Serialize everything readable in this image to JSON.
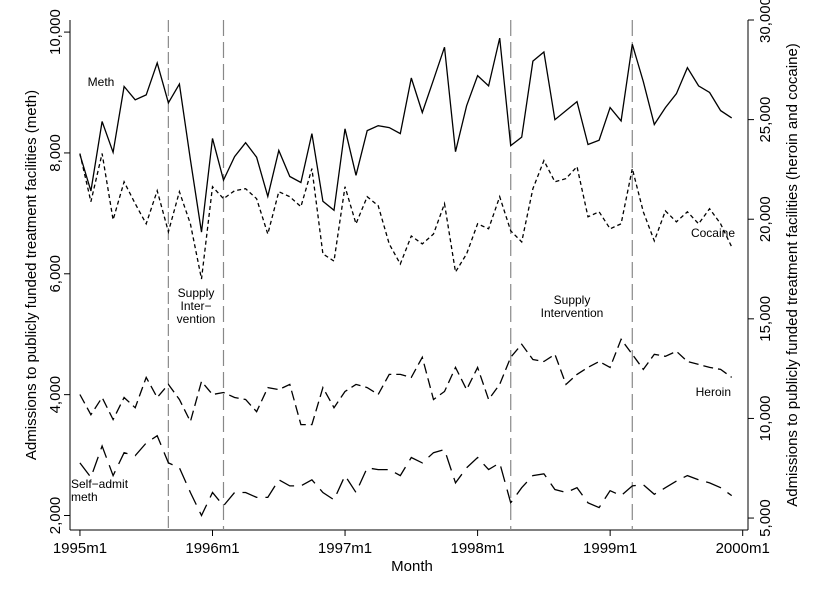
{
  "chart_data": {
    "type": "line",
    "xlabel": "Month",
    "ylabel": "Admissions to publicly funded treatment facilities (meth)",
    "y2label": "Admissions to publicly funded treatment facilities (heroin and cocaine)",
    "x": [
      1995,
      1995.083,
      1995.167,
      1995.25,
      1995.333,
      1995.417,
      1995.5,
      1995.583,
      1995.667,
      1995.75,
      1995.833,
      1995.917,
      1996,
      1996.083,
      1996.167,
      1996.25,
      1996.333,
      1996.417,
      1996.5,
      1996.583,
      1996.667,
      1996.75,
      1996.833,
      1996.917,
      1997,
      1997.083,
      1997.167,
      1997.25,
      1997.333,
      1997.417,
      1997.5,
      1997.583,
      1997.667,
      1997.75,
      1997.833,
      1997.917,
      1998,
      1998.083,
      1998.167,
      1998.25,
      1998.333,
      1998.417,
      1998.5,
      1998.583,
      1998.667,
      1998.75,
      1998.833,
      1998.917,
      1999,
      1999.083,
      1999.167,
      1999.25,
      1999.333,
      1999.417,
      1999.5,
      1999.583,
      1999.667,
      1999.75,
      1999.833,
      1999.917
    ],
    "xlim": [
      1994.925,
      2000.04
    ],
    "xticks": [
      {
        "value": 1995,
        "label": "1995m1"
      },
      {
        "value": 1996,
        "label": "1996m1"
      },
      {
        "value": 1997,
        "label": "1997m1"
      },
      {
        "value": 1998,
        "label": "1998m1"
      },
      {
        "value": 1999,
        "label": "1999m1"
      },
      {
        "value": 2000,
        "label": "2000m1"
      }
    ],
    "ylim": [
      1760,
      10200
    ],
    "yticks": [
      {
        "value": 2000,
        "label": "2,000"
      },
      {
        "value": 4000,
        "label": "4,000"
      },
      {
        "value": 6000,
        "label": "6,000"
      },
      {
        "value": 8000,
        "label": "8,000"
      },
      {
        "value": 10000,
        "label": "10,000"
      }
    ],
    "y2lim": [
      4400,
      30000
    ],
    "y2ticks": [
      {
        "value": 5000,
        "label": "5,000"
      },
      {
        "value": 10000,
        "label": "10,000"
      },
      {
        "value": 15000,
        "label": "15,000"
      },
      {
        "value": 20000,
        "label": "20,000"
      },
      {
        "value": 25000,
        "label": "25,000"
      },
      {
        "value": 30000,
        "label": "30,000"
      }
    ],
    "series": [
      {
        "name": "Meth",
        "color": "#000000",
        "line_style": "solid",
        "values": [
          7975,
          7370,
          8520,
          8010,
          9100,
          8880,
          8960,
          9490,
          8830,
          9140,
          7890,
          6690,
          8240,
          7550,
          7940,
          8170,
          7930,
          7280,
          8040,
          7610,
          7510,
          8320,
          7200,
          7050,
          8400,
          7630,
          8370,
          8450,
          8420,
          8320,
          9240,
          8670,
          9210,
          9750,
          8020,
          8780,
          9280,
          9110,
          9900,
          8120,
          8260,
          9520,
          9670,
          8550,
          8700,
          8850,
          8140,
          8210,
          8750,
          8530,
          9800,
          9180,
          8470,
          8750,
          8980,
          9410,
          9110,
          9000,
          8700,
          8580
        ]
      },
      {
        "name": "Cocaine",
        "color": "#000000",
        "line_style": "short-dash",
        "axis": "y2",
        "values": [
          23300,
          20880,
          23300,
          19970,
          21880,
          20780,
          19770,
          21430,
          19370,
          21380,
          19770,
          17000,
          21630,
          21030,
          21430,
          21530,
          21030,
          19260,
          21380,
          21130,
          20630,
          22540,
          18260,
          17900,
          21630,
          19770,
          21130,
          20680,
          18760,
          17750,
          19160,
          18760,
          19260,
          20780,
          17350,
          18260,
          19770,
          19520,
          21130,
          19420,
          18860,
          21530,
          22940,
          21880,
          22040,
          22640,
          20120,
          20370,
          19520,
          19770,
          22540,
          20370,
          18910,
          20420,
          19870,
          20370,
          19770,
          20530,
          19770,
          18610
        ]
      },
      {
        "name": "Heroin",
        "color": "#000000",
        "line_style": "dash",
        "axis": "y2",
        "values": [
          11200,
          10190,
          11050,
          9940,
          11050,
          10540,
          12060,
          11050,
          11710,
          10950,
          9840,
          11860,
          11200,
          11300,
          11050,
          10950,
          10340,
          11550,
          11450,
          11710,
          9690,
          9690,
          11550,
          10540,
          11350,
          11710,
          11550,
          11200,
          12210,
          12210,
          12060,
          13070,
          10950,
          11350,
          12560,
          11450,
          12560,
          10950,
          11710,
          13070,
          13720,
          12960,
          12860,
          13220,
          11710,
          12210,
          12560,
          12860,
          12560,
          13970,
          13220,
          12460,
          13220,
          13120,
          13370,
          12860,
          12710,
          12560,
          12460,
          12060
        ]
      },
      {
        "name": "Self−admit meth",
        "color": "#000000",
        "line_style": "long-dash",
        "values": [
          2870,
          2630,
          3150,
          2660,
          3040,
          2990,
          3200,
          3320,
          2870,
          2790,
          2380,
          2000,
          2380,
          2160,
          2380,
          2380,
          2300,
          2300,
          2590,
          2490,
          2490,
          2590,
          2380,
          2260,
          2660,
          2380,
          2790,
          2760,
          2760,
          2660,
          2960,
          2870,
          3040,
          3090,
          2540,
          2790,
          2960,
          2760,
          2870,
          2210,
          2460,
          2660,
          2690,
          2430,
          2380,
          2460,
          2210,
          2130,
          2410,
          2330,
          2490,
          2510,
          2350,
          2460,
          2570,
          2660,
          2590,
          2540,
          2460,
          2330
        ]
      }
    ],
    "series_labels": [
      [
        "Meth"
      ],
      [
        "Cocaine"
      ],
      [
        "Heroin"
      ],
      [
        "Self−admit",
        "meth"
      ]
    ],
    "vlines": [
      1995.667,
      1996.083,
      1998.25,
      1999.167
    ],
    "annotations": [
      {
        "lines": [
          "Supply",
          "Inter−",
          "vention"
        ]
      },
      {
        "lines": [
          "Supply",
          "Intervention"
        ]
      }
    ]
  }
}
